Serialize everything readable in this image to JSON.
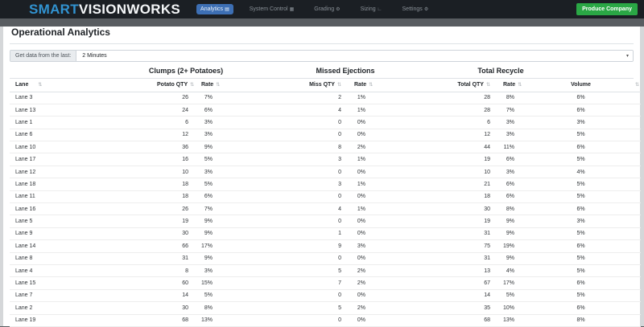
{
  "navbar": {
    "brand": {
      "primary": "SMART",
      "secondary": "VISIONWORKS"
    },
    "items": [
      {
        "label": "Analytics",
        "icon": "bar-chart-icon",
        "glyph": "▤",
        "active": true
      },
      {
        "label": "System Control",
        "icon": "control-panel-icon",
        "glyph": "▦",
        "active": false
      },
      {
        "label": "Grading",
        "icon": "gear-icon",
        "glyph": "⚙",
        "active": false
      },
      {
        "label": "Sizing",
        "icon": "ruler-icon",
        "glyph": "∟",
        "active": false
      },
      {
        "label": "Settings",
        "icon": "gears-icon",
        "glyph": "⚙",
        "active": false
      }
    ],
    "action_button": "Produce Company"
  },
  "page": {
    "title": "Operational Analytics"
  },
  "filter": {
    "label": "Get data from the last:",
    "value": "2 Minutes",
    "caret": "▾"
  },
  "colors": {
    "brand_blue": "#3193d1",
    "active_tab_blue": "#3d6fb4",
    "success_green": "#2aa745",
    "navbar_bg": "#1b1f24"
  },
  "table": {
    "groups": [
      "Clumps (2+ Potatoes)",
      "Missed Ejections",
      "Total Recycle"
    ],
    "columns": [
      "Lane",
      "Potato QTY",
      "Rate",
      "Miss QTY",
      "Rate",
      "Total QTY",
      "Rate",
      "Volume"
    ],
    "sort_icon": "⇅",
    "rows": [
      [
        "Lane 3",
        26,
        "7%",
        2,
        "1%",
        28,
        "8%",
        "6%"
      ],
      [
        "Lane 13",
        24,
        "6%",
        4,
        "1%",
        28,
        "7%",
        "6%"
      ],
      [
        "Lane 1",
        6,
        "3%",
        0,
        "0%",
        6,
        "3%",
        "3%"
      ],
      [
        "Lane 6",
        12,
        "3%",
        0,
        "0%",
        12,
        "3%",
        "5%"
      ],
      [
        "Lane 10",
        36,
        "9%",
        8,
        "2%",
        44,
        "11%",
        "6%"
      ],
      [
        "Lane 17",
        16,
        "5%",
        3,
        "1%",
        19,
        "6%",
        "5%"
      ],
      [
        "Lane 12",
        10,
        "3%",
        0,
        "0%",
        10,
        "3%",
        "4%"
      ],
      [
        "Lane 18",
        18,
        "5%",
        3,
        "1%",
        21,
        "6%",
        "5%"
      ],
      [
        "Lane 11",
        18,
        "6%",
        0,
        "0%",
        18,
        "6%",
        "5%"
      ],
      [
        "Lane 16",
        26,
        "7%",
        4,
        "1%",
        30,
        "8%",
        "6%"
      ],
      [
        "Lane 5",
        19,
        "9%",
        0,
        "0%",
        19,
        "9%",
        "3%"
      ],
      [
        "Lane 9",
        30,
        "9%",
        1,
        "0%",
        31,
        "9%",
        "5%"
      ],
      [
        "Lane 14",
        66,
        "17%",
        9,
        "3%",
        75,
        "19%",
        "6%"
      ],
      [
        "Lane 8",
        31,
        "9%",
        0,
        "0%",
        31,
        "9%",
        "5%"
      ],
      [
        "Lane 4",
        8,
        "3%",
        5,
        "2%",
        13,
        "4%",
        "5%"
      ],
      [
        "Lane 15",
        60,
        "15%",
        7,
        "2%",
        67,
        "17%",
        "6%"
      ],
      [
        "Lane 7",
        14,
        "5%",
        0,
        "0%",
        14,
        "5%",
        "5%"
      ],
      [
        "Lane 2",
        30,
        "8%",
        5,
        "2%",
        35,
        "10%",
        "6%"
      ],
      [
        "Lane 19",
        68,
        "13%",
        0,
        "0%",
        68,
        "13%",
        "8%"
      ]
    ]
  }
}
